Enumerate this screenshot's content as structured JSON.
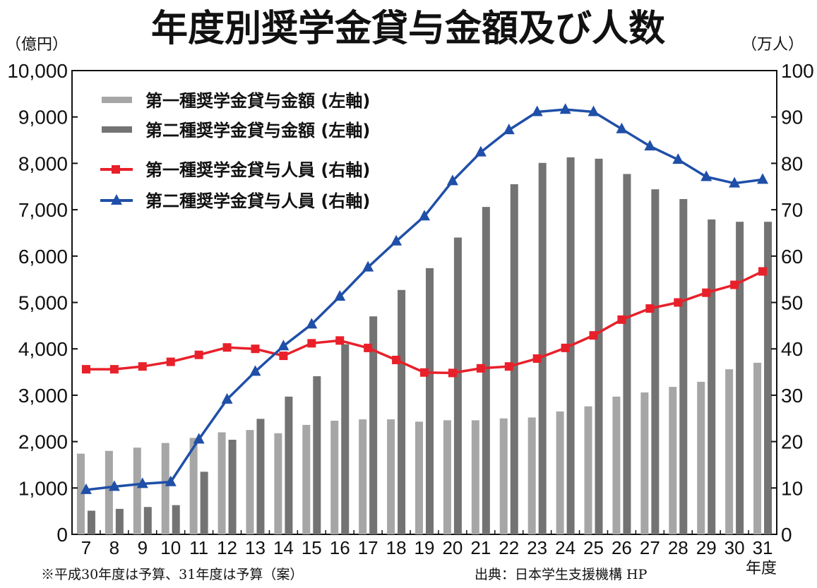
{
  "chart_data": {
    "type": "bar+line",
    "title": "年度別奨学金貸与金額及び人数",
    "ylabel_left": "（億円）",
    "ylabel_right": "（万人）",
    "xlabel": "年度",
    "ylim_left": [
      0,
      10000
    ],
    "ylim_right": [
      0,
      100
    ],
    "yticks_left": [
      "0",
      "1,000",
      "2,000",
      "3,000",
      "4,000",
      "5,000",
      "6,000",
      "7,000",
      "8,000",
      "9,000",
      "10,000"
    ],
    "yticks_right": [
      "0",
      "10",
      "20",
      "30",
      "40",
      "50",
      "60",
      "70",
      "80",
      "90",
      "100"
    ],
    "categories": [
      "7",
      "8",
      "9",
      "10",
      "11",
      "12",
      "13",
      "14",
      "15",
      "16",
      "17",
      "18",
      "19",
      "20",
      "21",
      "22",
      "23",
      "24",
      "25",
      "26",
      "27",
      "28",
      "29",
      "30",
      "31"
    ],
    "series": [
      {
        "name": "第一種奨学金貸与金額 (左軸)",
        "type": "bar",
        "axis": "left",
        "color": "#a6a6a6",
        "values": [
          1740,
          1800,
          1870,
          1970,
          2080,
          2200,
          2250,
          2180,
          2360,
          2450,
          2480,
          2480,
          2430,
          2460,
          2460,
          2500,
          2520,
          2650,
          2760,
          2970,
          3060,
          3180,
          3290,
          3560,
          3700
        ]
      },
      {
        "name": "第二種奨学金貸与金額 (左軸)",
        "type": "bar",
        "axis": "left",
        "color": "#737373",
        "values": [
          510,
          550,
          590,
          630,
          1350,
          2040,
          2490,
          2970,
          3410,
          4100,
          4700,
          5270,
          5740,
          6400,
          7060,
          7550,
          8010,
          8130,
          8100,
          7770,
          7440,
          7230,
          6790,
          6740,
          6740
        ]
      },
      {
        "name": "第一種奨学金貸与人員 (右軸)",
        "type": "line",
        "marker": "square",
        "axis": "right",
        "color": "#e8202a",
        "values": [
          35.6,
          35.6,
          36.2,
          37.2,
          38.7,
          40.3,
          40.0,
          38.5,
          41.2,
          41.8,
          40.2,
          37.6,
          34.9,
          34.8,
          35.8,
          36.2,
          37.9,
          40.2,
          42.9,
          46.3,
          48.7,
          50.0,
          52.1,
          53.8,
          56.7
        ]
      },
      {
        "name": "第二種奨学金貸与人員 (右軸)",
        "type": "line",
        "marker": "triangle",
        "axis": "right",
        "color": "#1f4fa8",
        "values": [
          9.6,
          10.3,
          10.9,
          11.3,
          20.5,
          29.1,
          35.1,
          40.6,
          45.3,
          51.3,
          57.6,
          63.2,
          68.6,
          76.2,
          82.4,
          87.2,
          91.1,
          91.6,
          91.1,
          87.4,
          83.7,
          80.8,
          77.1,
          75.7,
          76.5
        ]
      }
    ],
    "legend_position": "top-left",
    "grid": false
  },
  "footnote": "※平成30年度は予算、31年度は予算（案）",
  "source": "出典：日本学生支援機構 HP"
}
